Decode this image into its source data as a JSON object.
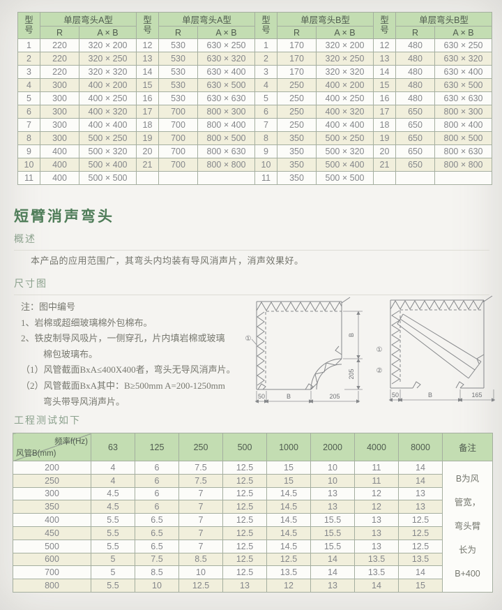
{
  "top_table": {
    "header": {
      "model": "型\n号",
      "r": "R",
      "axb": "A × B"
    },
    "groups": [
      {
        "title": "单层弯头A型",
        "rows": [
          [
            "1",
            "220",
            "320 × 200"
          ],
          [
            "2",
            "220",
            "320 × 250"
          ],
          [
            "3",
            "220",
            "320 × 320"
          ],
          [
            "4",
            "300",
            "400 × 200"
          ],
          [
            "5",
            "300",
            "400 × 250"
          ],
          [
            "6",
            "300",
            "400 × 320"
          ],
          [
            "7",
            "300",
            "400 × 400"
          ],
          [
            "8",
            "300",
            "500 × 250"
          ],
          [
            "9",
            "400",
            "500 × 320"
          ],
          [
            "10",
            "400",
            "500 × 400"
          ],
          [
            "11",
            "400",
            "500 × 500"
          ]
        ]
      },
      {
        "title": "单层弯头A型",
        "rows": [
          [
            "12",
            "530",
            "630 × 250"
          ],
          [
            "13",
            "530",
            "630 × 320"
          ],
          [
            "14",
            "530",
            "630 × 400"
          ],
          [
            "15",
            "530",
            "630 × 500"
          ],
          [
            "16",
            "530",
            "630 × 630"
          ],
          [
            "17",
            "700",
            "800 × 300"
          ],
          [
            "18",
            "700",
            "800 × 400"
          ],
          [
            "19",
            "700",
            "800 × 500"
          ],
          [
            "20",
            "700",
            "800 × 630"
          ],
          [
            "21",
            "700",
            "800 × 800"
          ]
        ]
      },
      {
        "title": "单层弯头B型",
        "rows": [
          [
            "1",
            "170",
            "320 × 200"
          ],
          [
            "2",
            "170",
            "320 × 250"
          ],
          [
            "3",
            "170",
            "320 × 320"
          ],
          [
            "4",
            "250",
            "400 × 200"
          ],
          [
            "5",
            "250",
            "400 × 250"
          ],
          [
            "6",
            "250",
            "400 × 320"
          ],
          [
            "7",
            "250",
            "400 × 400"
          ],
          [
            "8",
            "350",
            "500 × 250"
          ],
          [
            "9",
            "350",
            "500 × 320"
          ],
          [
            "10",
            "350",
            "500 × 400"
          ],
          [
            "11",
            "350",
            "500 × 500"
          ]
        ]
      },
      {
        "title": "单层弯头B型",
        "rows": [
          [
            "12",
            "480",
            "630 × 250"
          ],
          [
            "13",
            "480",
            "630 × 320"
          ],
          [
            "14",
            "480",
            "630 × 400"
          ],
          [
            "15",
            "480",
            "630 × 500"
          ],
          [
            "16",
            "480",
            "630 × 630"
          ],
          [
            "17",
            "650",
            "800 × 300"
          ],
          [
            "18",
            "650",
            "800 × 400"
          ],
          [
            "19",
            "650",
            "800 × 500"
          ],
          [
            "20",
            "650",
            "800 × 630"
          ],
          [
            "21",
            "650",
            "800 × 800"
          ]
        ]
      }
    ]
  },
  "section": {
    "title": "短臂消声弯头",
    "overview_heading": "概述",
    "overview_text": "本产品的应用范围广，其弯头内均装有导风消声片，消声效果好。",
    "dimension_heading": "尺寸图",
    "test_heading": "工程测试如下"
  },
  "notes": {
    "title": "注：图中编号",
    "items": [
      {
        "text": "1、岩棉或超细玻璃棉外包棉布。",
        "indent": 0
      },
      {
        "text": "2、铁皮制导风吸片，一侧穿孔，片内填岩棉或玻璃",
        "indent": 0
      },
      {
        "text": "棉包玻璃布。",
        "indent": 1
      },
      {
        "text": "（1）风管截面BxA≤400X400者，弯头无导风消声片。",
        "indent": 0
      },
      {
        "text": "（2）风管截面BxA其中：B≥500mm  A=200-1250mm",
        "indent": 0
      },
      {
        "text": "弯头带导风消声片。",
        "indent": 1
      }
    ]
  },
  "diagrams": {
    "d1": {
      "callout_1": "①",
      "dim_right_b": "B",
      "dim_right_205": "205",
      "dim_bottom_50": "50",
      "dim_bottom_b": "B",
      "dim_bottom_205": "205"
    },
    "d2": {
      "callout_1": "①",
      "callout_2": "②",
      "dim_bottom_50": "50",
      "dim_bottom_b": "B",
      "dim_bottom_165": "165"
    }
  },
  "bottom_table": {
    "corner_top": "频率f(Hz)",
    "corner_bottom": "风管B(mm)",
    "freq_headers": [
      "63",
      "125",
      "250",
      "500",
      "1000",
      "2000",
      "4000",
      "8000"
    ],
    "remark_header": "备注",
    "remark_lines": [
      "B为风",
      "管宽，",
      "弯头臂",
      "长为",
      "B+400"
    ],
    "rows": [
      {
        "b": "200",
        "values": [
          "4",
          "6",
          "7.5",
          "12.5",
          "15",
          "10",
          "11",
          "14"
        ]
      },
      {
        "b": "250",
        "values": [
          "4",
          "6",
          "7.5",
          "12.5",
          "15",
          "10",
          "11",
          "14"
        ]
      },
      {
        "b": "300",
        "values": [
          "4.5",
          "6",
          "7",
          "12.5",
          "14.5",
          "13",
          "12",
          "13"
        ]
      },
      {
        "b": "350",
        "values": [
          "4.5",
          "6",
          "7",
          "12.5",
          "14.5",
          "13",
          "12",
          "13"
        ]
      },
      {
        "b": "400",
        "values": [
          "5.5",
          "6.5",
          "7",
          "12.5",
          "14.5",
          "15.5",
          "13",
          "12.5"
        ]
      },
      {
        "b": "450",
        "values": [
          "5.5",
          "6.5",
          "7",
          "12.5",
          "14.5",
          "15.5",
          "13",
          "12.5"
        ]
      },
      {
        "b": "500",
        "values": [
          "5.5",
          "6.5",
          "7",
          "12.5",
          "14.5",
          "15.5",
          "13",
          "12.5"
        ]
      },
      {
        "b": "600",
        "values": [
          "5",
          "7.5",
          "8.5",
          "12.5",
          "12.5",
          "14",
          "13.5",
          "13.5"
        ]
      },
      {
        "b": "700",
        "values": [
          "5",
          "8.5",
          "10",
          "12.5",
          "13.5",
          "14",
          "13.5",
          "14"
        ]
      },
      {
        "b": "800",
        "values": [
          "5.5",
          "10",
          "12.5",
          "13",
          "12",
          "13",
          "14",
          "15"
        ]
      }
    ]
  },
  "colors": {
    "header_green": "#c3ddb2",
    "row_cream": "#f1efdc",
    "row_white": "#fcfcf9",
    "border": "#a4ae9f",
    "title_green": "#4e7c58",
    "heading_green": "#8ba18d",
    "text_gray": "#77786f"
  }
}
